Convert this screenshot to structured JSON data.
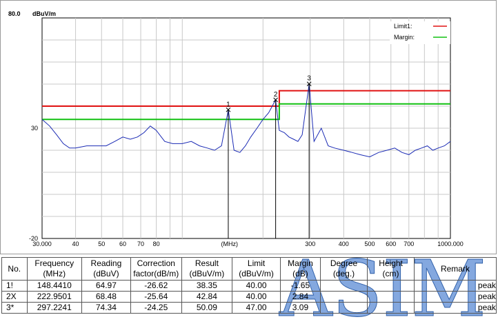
{
  "chart_data": {
    "type": "line",
    "x_scale": "log",
    "xlim": [
      30,
      1000
    ],
    "ylim": [
      -20,
      80
    ],
    "y_unit": "dBuV/m",
    "y_top_label": "80.0",
    "y_tick_labels": [
      "30",
      "-20"
    ],
    "y_tick_values": [
      30,
      -20
    ],
    "x_tick_labels": [
      "30.000",
      "40",
      "50",
      "60",
      "70",
      "80",
      "(MHz)",
      "300",
      "400",
      "500",
      "600",
      "700",
      "1000.000"
    ],
    "x_tick_values": [
      30,
      40,
      50,
      60,
      70,
      80,
      150,
      300,
      400,
      500,
      600,
      700,
      1000
    ],
    "grid": true,
    "legend_position": "top-right",
    "series": [
      {
        "name": "Limit1:",
        "color": "#e01010",
        "x": [
          30,
          230,
          230,
          1000
        ],
        "y": [
          40,
          40,
          47,
          47
        ]
      },
      {
        "name": "Margin:",
        "color": "#10c010",
        "x": [
          30,
          230,
          230,
          1000
        ],
        "y": [
          34,
          34,
          41,
          41
        ]
      },
      {
        "name": "",
        "color": "#1a2ab4",
        "x": [
          30,
          32,
          34,
          36,
          38,
          40,
          44,
          48,
          52,
          56,
          60,
          64,
          68,
          72,
          76,
          80,
          86,
          92,
          100,
          108,
          116,
          124,
          132,
          140,
          148.441,
          156,
          164,
          172,
          180,
          190,
          200,
          210,
          222.95,
          230,
          240,
          250,
          260,
          270,
          280,
          297.22,
          310,
          330,
          350,
          370,
          400,
          430,
          460,
          500,
          540,
          580,
          620,
          660,
          700,
          740,
          780,
          820,
          860,
          900,
          950,
          1000
        ],
        "y": [
          34,
          31,
          27,
          23,
          21,
          21,
          22,
          22,
          22,
          24,
          26,
          25,
          26,
          28,
          31,
          29,
          24,
          23,
          23,
          24,
          22,
          21,
          20,
          22,
          38.35,
          20,
          19,
          22,
          26,
          30,
          34,
          37,
          42.84,
          29,
          28,
          26,
          25,
          24,
          27,
          50.09,
          24,
          30,
          22,
          21,
          20,
          19,
          18,
          17,
          19,
          20,
          21,
          19,
          18,
          20,
          21,
          22,
          20,
          21,
          22,
          24
        ]
      }
    ],
    "markers": [
      {
        "label": "1",
        "x": 148.441,
        "y": 38.35
      },
      {
        "label": "2",
        "x": 222.9501,
        "y": 42.84
      },
      {
        "label": "3",
        "x": 297.2241,
        "y": 50.09
      }
    ]
  },
  "table": {
    "headers": [
      {
        "line1": "No.",
        "line2": ""
      },
      {
        "line1": "Frequency",
        "line2": "(MHz)"
      },
      {
        "line1": "Reading",
        "line2": "(dBuV)"
      },
      {
        "line1": "Correction",
        "line2": "factor(dB/m)"
      },
      {
        "line1": "Result",
        "line2": "(dBuV/m)"
      },
      {
        "line1": "Limit",
        "line2": "(dBuV/m)"
      },
      {
        "line1": "Margin",
        "line2": "(dB)"
      },
      {
        "line1": "Degree",
        "line2": "(deg.)"
      },
      {
        "line1": "Height",
        "line2": "(cm)"
      },
      {
        "line1": "Remark",
        "line2": ""
      }
    ],
    "rows": [
      [
        "1!",
        "148.4410",
        "64.97",
        "-26.62",
        "38.35",
        "40.00",
        "-1.65",
        "",
        "",
        "peak"
      ],
      [
        "2X",
        "222.9501",
        "68.48",
        "-25.64",
        "42.84",
        "40.00",
        "2.84",
        "",
        "",
        "peak"
      ],
      [
        "3*",
        "297.2241",
        "74.34",
        "-24.25",
        "50.09",
        "47.00",
        "3.09",
        "",
        "",
        "peak"
      ]
    ]
  },
  "watermark": {
    "text": "ASIM"
  }
}
